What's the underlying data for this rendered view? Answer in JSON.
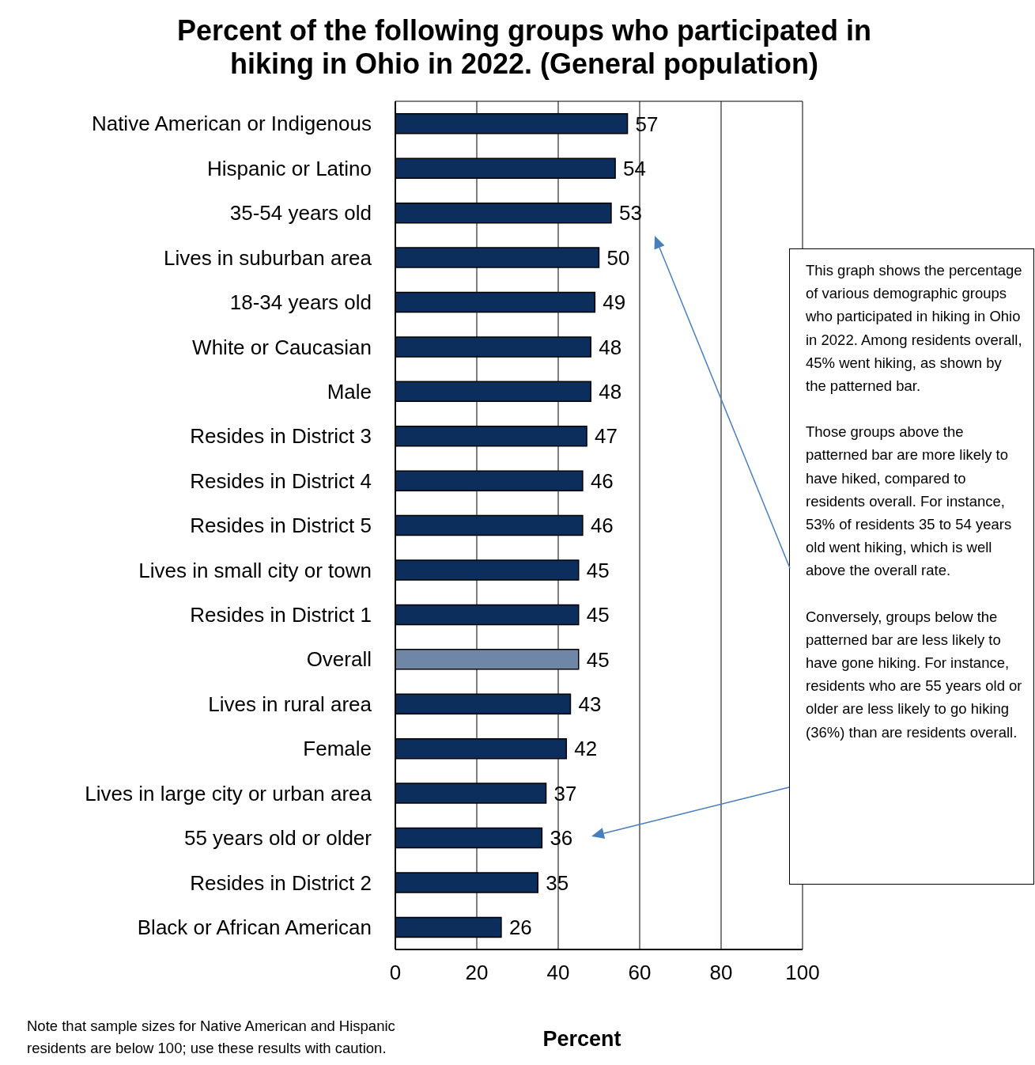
{
  "chart_data": {
    "type": "bar",
    "orientation": "horizontal",
    "title": "Percent of the following groups who participated in hiking in Ohio in 2022. (General population)",
    "xlabel": "Percent",
    "categories": [
      "Native American or Indigenous",
      "Hispanic or Latino",
      "35-54 years old",
      "Lives in suburban area",
      "18-34 years old",
      "White or Caucasian",
      "Male",
      "Resides in District 3",
      "Resides in District 4",
      "Resides in District 5",
      "Lives in small city or town",
      "Resides in District 1",
      "Overall",
      "Lives in rural area",
      "Female",
      "Lives in large city or urban area",
      "55 years old or older",
      "Resides in District 2",
      "Black or African American"
    ],
    "values": [
      57,
      54,
      53,
      50,
      49,
      48,
      48,
      47,
      46,
      46,
      45,
      45,
      45,
      43,
      42,
      37,
      36,
      35,
      26
    ],
    "colors": [
      "#0b2e5c",
      "#0b2e5c",
      "#0b2e5c",
      "#0b2e5c",
      "#0b2e5c",
      "#0b2e5c",
      "#0b2e5c",
      "#0b2e5c",
      "#0b2e5c",
      "#0b2e5c",
      "#0b2e5c",
      "#0b2e5c",
      "#6f86a6",
      "#0b2e5c",
      "#0b2e5c",
      "#0b2e5c",
      "#0b2e5c",
      "#0b2e5c",
      "#0b2e5c"
    ],
    "xlim": [
      0,
      100
    ],
    "xticks": [
      0,
      20,
      40,
      60,
      80,
      100
    ],
    "grid": "x",
    "data_labels": true,
    "annotations": [
      "This graph shows the percentage of various demographic groups who participated in hiking in Ohio in 2022. Among residents overall, 45% went hiking, as shown by the patterned bar.",
      "Those groups above the patterned bar are more likely to have hiked, compared to residents overall. For instance, 53% of residents 35 to 54 years old went hiking, which is well above the overall rate.",
      "Conversely, groups below the patterned bar are less likely to have gone hiking. For instance, residents who are 55 years old or older are less likely to go hiking (36%) than are residents overall.",
      "Note that sample sizes for Native American and Hispanic residents are below 100; use these results with caution."
    ]
  }
}
